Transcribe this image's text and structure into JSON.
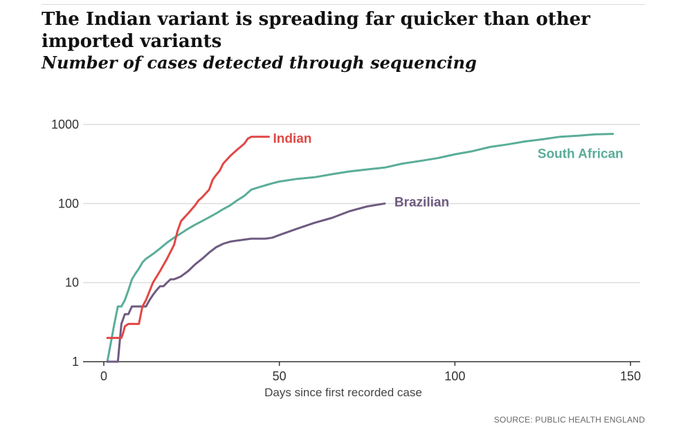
{
  "header": {
    "title": "The Indian variant is spreading far quicker than other imported variants",
    "subtitle": "Number of cases detected through sequencing"
  },
  "footer": {
    "source": "SOURCE: PUBLIC HEALTH ENGLAND"
  },
  "chart_data": {
    "type": "line",
    "title": "The Indian variant is spreading far quicker than other imported variants",
    "subtitle": "Number of cases detected through sequencing",
    "xlabel": "Days since first recorded case",
    "ylabel": "",
    "xlim": [
      0,
      152
    ],
    "ylim": [
      1,
      1000
    ],
    "yscale": "log",
    "xticks": [
      0,
      50,
      100,
      150
    ],
    "yticks": [
      1,
      10,
      100,
      1000
    ],
    "xtick_labels": [
      "0",
      "50",
      "100",
      "150"
    ],
    "ytick_labels": [
      "1",
      "10",
      "100",
      "1000"
    ],
    "grid": "horizontal",
    "legend": "direct-labels",
    "series": [
      {
        "name": "Indian",
        "color": "#e04845",
        "x": [
          1,
          5,
          5.5,
          6,
          7,
          8,
          10,
          11,
          12,
          14,
          16,
          18,
          20,
          21,
          22,
          24,
          26,
          27,
          28,
          30,
          31,
          32,
          33,
          34,
          36,
          38,
          40,
          41,
          42,
          43,
          44,
          46,
          47
        ],
        "y": [
          2,
          2,
          2.3,
          2.8,
          3,
          3,
          3,
          5,
          6,
          10,
          14,
          20,
          30,
          45,
          60,
          75,
          95,
          110,
          120,
          150,
          200,
          230,
          260,
          320,
          400,
          480,
          570,
          660,
          700,
          700,
          700,
          700,
          700
        ]
      },
      {
        "name": "South African",
        "color": "#5aad99",
        "x": [
          1,
          3,
          4,
          5,
          6,
          7,
          8,
          9,
          10,
          11,
          12,
          14,
          16,
          18,
          20,
          22,
          24,
          26,
          28,
          30,
          32,
          34,
          36,
          38,
          40,
          42,
          44,
          46,
          48,
          50,
          55,
          60,
          65,
          70,
          75,
          80,
          85,
          90,
          95,
          100,
          105,
          110,
          115,
          120,
          125,
          130,
          135,
          140,
          145
        ],
        "y": [
          1,
          3,
          5,
          5,
          6,
          8,
          11,
          13,
          15,
          18,
          20,
          23,
          27,
          32,
          37,
          42,
          48,
          54,
          60,
          67,
          75,
          85,
          95,
          110,
          125,
          150,
          160,
          170,
          180,
          190,
          205,
          215,
          235,
          255,
          270,
          285,
          320,
          345,
          375,
          420,
          460,
          520,
          560,
          610,
          650,
          700,
          720,
          750,
          760
        ]
      },
      {
        "name": "Brazilian",
        "color": "#6e5b80",
        "x": [
          1,
          4,
          5,
          6,
          7,
          8,
          9,
          10,
          11,
          12,
          13,
          14,
          15,
          16,
          17,
          18,
          19,
          20,
          22,
          24,
          26,
          28,
          30,
          32,
          34,
          36,
          38,
          40,
          42,
          44,
          46,
          48,
          50,
          55,
          60,
          65,
          70,
          75,
          80
        ],
        "y": [
          1,
          1,
          3,
          4,
          4,
          5,
          5,
          5,
          5,
          5,
          6,
          7,
          8,
          9,
          9,
          10,
          11,
          11,
          12,
          14,
          17,
          20,
          24,
          28,
          31,
          33,
          34,
          35,
          36,
          36,
          36,
          37,
          40,
          48,
          57,
          66,
          80,
          92,
          100
        ]
      }
    ]
  }
}
